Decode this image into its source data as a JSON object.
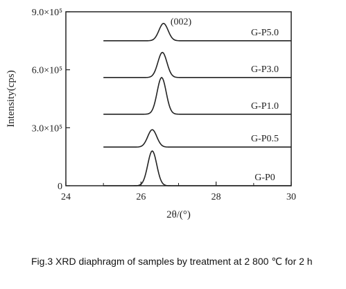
{
  "chart_data": {
    "type": "line",
    "xlabel": "2θ/(°)",
    "ylabel": "Intensity(cps)",
    "xlim": [
      24,
      30
    ],
    "x_ticks": [
      "24",
      "26",
      "28",
      "30"
    ],
    "ylim": [
      0,
      900000
    ],
    "y_ticks": [
      "0",
      "3.0×10⁵",
      "6.0×10⁵",
      "9.0×10⁵"
    ],
    "annotation": "(002)",
    "series": [
      {
        "name": "G-P0",
        "peak_2theta": 26.3,
        "baseline": 0,
        "peak": 180000
      },
      {
        "name": "G-P0.5",
        "peak_2theta": 26.3,
        "baseline": 200000,
        "peak": 290000
      },
      {
        "name": "G-P1.0",
        "peak_2theta": 26.55,
        "baseline": 370000,
        "peak": 560000
      },
      {
        "name": "G-P3.0",
        "peak_2theta": 26.57,
        "baseline": 560000,
        "peak": 690000
      },
      {
        "name": "G-P5.0",
        "peak_2theta": 26.6,
        "baseline": 750000,
        "peak": 840000
      }
    ]
  },
  "caption": "Fig.3 XRD diaphragm of samples by treatment at 2 800 ℃ for 2 h"
}
